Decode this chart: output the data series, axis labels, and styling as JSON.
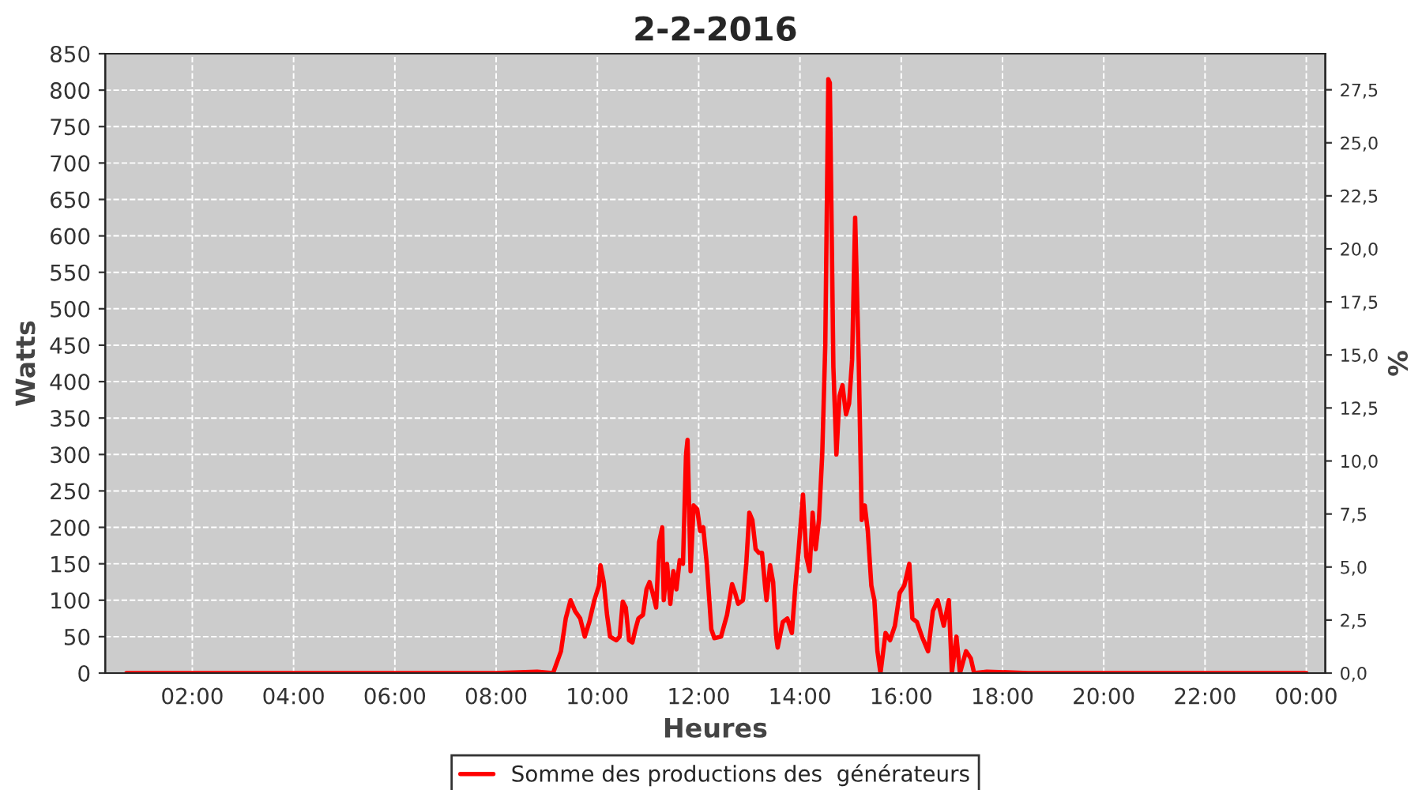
{
  "chart_data": {
    "type": "line",
    "title": "2-2-2016",
    "xlabel": "Heures",
    "ylabel": "Watts",
    "y2label": "%",
    "x": [
      0.7,
      2.0,
      3.5,
      5.0,
      6.5,
      7.25,
      8.0,
      8.81,
      9.125,
      9.28,
      9.375,
      9.47,
      9.56,
      9.66,
      9.75,
      9.84,
      9.94,
      10.03,
      10.06,
      10.125,
      10.19,
      10.25,
      10.375,
      10.44,
      10.5,
      10.56,
      10.625,
      10.69,
      10.75,
      10.81,
      10.9,
      10.97,
      11.03,
      11.09,
      11.16,
      11.22,
      11.28,
      11.31,
      11.375,
      11.44,
      11.5,
      11.56,
      11.625,
      11.69,
      11.75,
      11.78,
      11.84,
      11.9,
      11.97,
      12.03,
      12.09,
      12.16,
      12.25,
      12.31,
      12.44,
      12.56,
      12.66,
      12.72,
      12.78,
      12.875,
      12.94,
      13.0,
      13.06,
      13.125,
      13.19,
      13.25,
      13.31,
      13.34,
      13.41,
      13.47,
      13.53,
      13.56,
      13.66,
      13.75,
      13.84,
      13.91,
      13.97,
      14.06,
      14.125,
      14.19,
      14.25,
      14.31,
      14.375,
      14.44,
      14.5,
      14.56,
      14.59,
      14.66,
      14.72,
      14.78,
      14.84,
      14.91,
      14.97,
      15.03,
      15.09,
      15.16,
      15.22,
      15.28,
      15.34,
      15.41,
      15.47,
      15.53,
      15.59,
      15.69,
      15.78,
      15.875,
      15.97,
      16.06,
      16.16,
      16.22,
      16.31,
      16.41,
      16.53,
      16.625,
      16.72,
      16.84,
      16.94,
      17.0,
      17.09,
      17.16,
      17.28,
      17.375,
      17.44,
      17.69,
      18.5,
      20.0,
      21.5,
      23.0,
      24.0
    ],
    "series": [
      {
        "name": "Somme des productions des  générateurs",
        "color": "#ff0000",
        "values": [
          0,
          0,
          0,
          0,
          0,
          0,
          0,
          2,
          0,
          30,
          75,
          100,
          85,
          75,
          50,
          70,
          100,
          120,
          148,
          125,
          80,
          50,
          45,
          50,
          98,
          90,
          45,
          42,
          60,
          75,
          80,
          115,
          125,
          110,
          90,
          180,
          200,
          100,
          150,
          95,
          140,
          115,
          155,
          150,
          300,
          320,
          140,
          230,
          225,
          195,
          200,
          150,
          60,
          48,
          50,
          80,
          122,
          110,
          95,
          100,
          150,
          220,
          210,
          170,
          165,
          165,
          120,
          100,
          148,
          125,
          50,
          35,
          70,
          75,
          55,
          120,
          165,
          245,
          160,
          140,
          220,
          170,
          210,
          300,
          450,
          815,
          810,
          420,
          300,
          380,
          395,
          355,
          370,
          430,
          625,
          430,
          210,
          230,
          195,
          120,
          100,
          30,
          0,
          55,
          45,
          65,
          110,
          120,
          150,
          75,
          70,
          50,
          30,
          85,
          100,
          65,
          100,
          0,
          50,
          0,
          30,
          20,
          0,
          2,
          0,
          0,
          0,
          0,
          0
        ]
      }
    ],
    "xlim": [
      0.28,
      24.375
    ],
    "xticks": [
      {
        "value": 2,
        "label": "02:00"
      },
      {
        "value": 4,
        "label": "04:00"
      },
      {
        "value": 6,
        "label": "06:00"
      },
      {
        "value": 8,
        "label": "08:00"
      },
      {
        "value": 10,
        "label": "10:00"
      },
      {
        "value": 12,
        "label": "12:00"
      },
      {
        "value": 14,
        "label": "14:00"
      },
      {
        "value": 16,
        "label": "16:00"
      },
      {
        "value": 18,
        "label": "18:00"
      },
      {
        "value": 20,
        "label": "20:00"
      },
      {
        "value": 22,
        "label": "22:00"
      },
      {
        "value": 24,
        "label": "00:00"
      }
    ],
    "ylim": [
      0,
      850
    ],
    "yticks": [
      0,
      50,
      100,
      150,
      200,
      250,
      300,
      350,
      400,
      450,
      500,
      550,
      600,
      650,
      700,
      750,
      800,
      850
    ],
    "y2lim": [
      0,
      29.2
    ],
    "y2ticks": [
      {
        "value": 0,
        "label": "0,0"
      },
      {
        "value": 2.5,
        "label": "2,5"
      },
      {
        "value": 5,
        "label": "5,0"
      },
      {
        "value": 7.5,
        "label": "7,5"
      },
      {
        "value": 10,
        "label": "10,0"
      },
      {
        "value": 12.5,
        "label": "12,5"
      },
      {
        "value": 15,
        "label": "15,0"
      },
      {
        "value": 17.5,
        "label": "17,5"
      },
      {
        "value": 20,
        "label": "20,0"
      },
      {
        "value": 22.5,
        "label": "22,5"
      },
      {
        "value": 25,
        "label": "25,0"
      },
      {
        "value": 27.5,
        "label": "27,5"
      }
    ],
    "grid": true,
    "legend": "bottom",
    "marker": "none",
    "line_style": "solid"
  }
}
